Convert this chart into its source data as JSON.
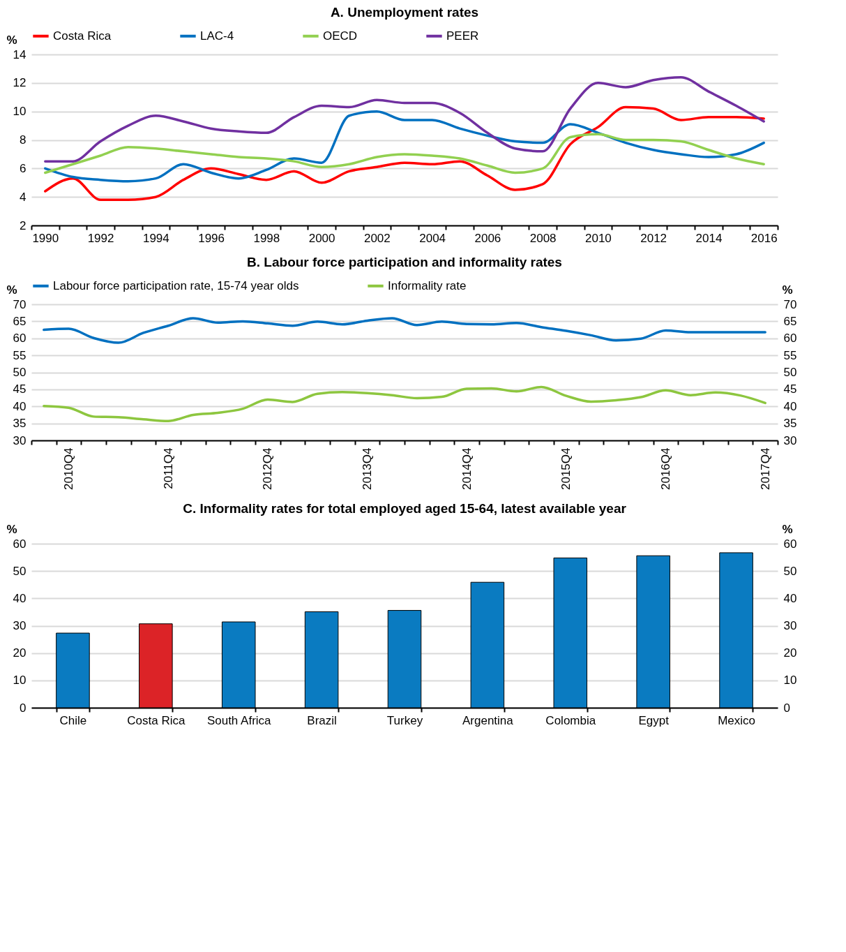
{
  "chart_data": [
    {
      "type": "line",
      "title": "A. Unemployment rates",
      "ylabel": "%",
      "categories": [
        "1990",
        null,
        "1992",
        null,
        "1994",
        null,
        "1996",
        null,
        "1998",
        null,
        "2000",
        null,
        "2002",
        null,
        "2004",
        null,
        "2006",
        null,
        "2008",
        null,
        "2010",
        null,
        "2012",
        null,
        "2014",
        null,
        "2016"
      ],
      "series": [
        {
          "name": "Costa Rica",
          "color": "#ff0000",
          "values": [
            4.4,
            5.3,
            3.8,
            3.8,
            4.0,
            5.2,
            6.0,
            5.6,
            5.2,
            5.8,
            5.0,
            5.8,
            6.1,
            6.4,
            6.3,
            6.5,
            5.5,
            4.5,
            4.9,
            7.7,
            8.9,
            10.3,
            10.2,
            9.4,
            9.6,
            9.6,
            9.5
          ]
        },
        {
          "name": "LAC-4",
          "color": "#0070c0",
          "values": [
            6.0,
            5.4,
            5.2,
            5.1,
            5.3,
            6.3,
            5.7,
            5.3,
            5.9,
            6.7,
            6.4,
            9.7,
            10.0,
            9.4,
            9.4,
            8.8,
            8.3,
            7.9,
            7.8,
            9.1,
            8.5,
            7.8,
            7.3,
            7.0,
            6.8,
            7.0,
            7.8
          ]
        },
        {
          "name": "OECD",
          "color": "#92d050",
          "values": [
            5.7,
            6.3,
            6.9,
            7.5,
            7.4,
            7.2,
            7.0,
            6.8,
            6.7,
            6.5,
            6.1,
            6.3,
            6.8,
            7.0,
            6.9,
            6.7,
            6.2,
            5.7,
            6.0,
            8.2,
            8.4,
            8.0,
            8.0,
            7.9,
            7.3,
            6.7,
            6.3
          ]
        },
        {
          "name": "PEER",
          "color": "#7030a0",
          "values": [
            6.5,
            6.5,
            7.9,
            9.0,
            9.7,
            9.3,
            8.8,
            8.6,
            8.5,
            9.6,
            10.4,
            10.3,
            10.8,
            10.6,
            10.6,
            9.9,
            8.5,
            7.4,
            7.2,
            10.2,
            12.0,
            11.7,
            12.2,
            12.4,
            11.4,
            10.4,
            9.3
          ]
        }
      ],
      "ylim": [
        2,
        14
      ],
      "yticks": [
        2,
        4,
        6,
        8,
        10,
        12,
        14
      ],
      "grid": "y",
      "legend": "top"
    },
    {
      "type": "line",
      "title": "B. Labour force participation and informality rates",
      "ylabel": "%",
      "y2label": "%",
      "categories": [
        null,
        "2010Q4",
        null,
        null,
        null,
        "2011Q4",
        null,
        null,
        null,
        "2012Q4",
        null,
        null,
        null,
        "2013Q4",
        null,
        null,
        null,
        "2014Q4",
        null,
        null,
        null,
        "2015Q4",
        null,
        null,
        null,
        "2016Q4",
        null,
        null,
        null,
        "2017Q4"
      ],
      "series": [
        {
          "name": "Labour force participation rate, 15-74 year olds",
          "color": "#0070c0",
          "values": [
            62.5,
            62.8,
            60.1,
            58.7,
            61.6,
            63.7,
            65.9,
            64.6,
            65.0,
            64.4,
            63.7,
            64.9,
            64.1,
            65.2,
            65.9,
            63.9,
            64.9,
            64.2,
            64.1,
            64.5,
            63.3,
            62.2,
            60.9,
            59.4,
            59.9,
            62.3,
            61.8,
            61.8,
            61.8,
            61.8
          ]
        },
        {
          "name": "Informality rate",
          "color": "#8dc63f",
          "values": [
            40.1,
            39.6,
            37.0,
            36.8,
            36.2,
            35.7,
            37.5,
            38.1,
            39.3,
            42.0,
            41.3,
            43.7,
            44.2,
            43.9,
            43.3,
            42.4,
            42.8,
            45.2,
            45.3,
            44.4,
            45.7,
            43.1,
            41.4,
            41.8,
            42.7,
            44.7,
            43.3,
            44.1,
            43.2,
            41.0
          ]
        }
      ],
      "ylim": [
        30,
        70
      ],
      "yticks": [
        30,
        35,
        40,
        45,
        50,
        55,
        60,
        65,
        70
      ],
      "y2lim": [
        30,
        70
      ],
      "y2ticks": [
        30,
        35,
        40,
        45,
        50,
        55,
        60,
        65,
        70
      ],
      "grid": "y",
      "legend": "top"
    },
    {
      "type": "bar",
      "title": "C. Informality rates for total employed aged 15-64, latest available year",
      "ylabel": "%",
      "y2label": "%",
      "categories": [
        "Chile",
        "Costa Rica",
        "South Africa",
        "Brazil",
        "Turkey",
        "Argentina",
        "Colombia",
        "Egypt",
        "Mexico"
      ],
      "values": [
        27.3,
        30.7,
        31.4,
        35.1,
        35.6,
        45.9,
        54.8,
        55.6,
        56.7
      ],
      "colors": [
        "#0a7bc1",
        "#dc2327",
        "#0a7bc1",
        "#0a7bc1",
        "#0a7bc1",
        "#0a7bc1",
        "#0a7bc1",
        "#0a7bc1",
        "#0a7bc1"
      ],
      "ylim": [
        0,
        60
      ],
      "yticks": [
        0,
        10,
        20,
        30,
        40,
        50,
        60
      ],
      "y2lim": [
        0,
        60
      ],
      "y2ticks": [
        0,
        10,
        20,
        30,
        40,
        50,
        60
      ],
      "grid": "y"
    }
  ]
}
